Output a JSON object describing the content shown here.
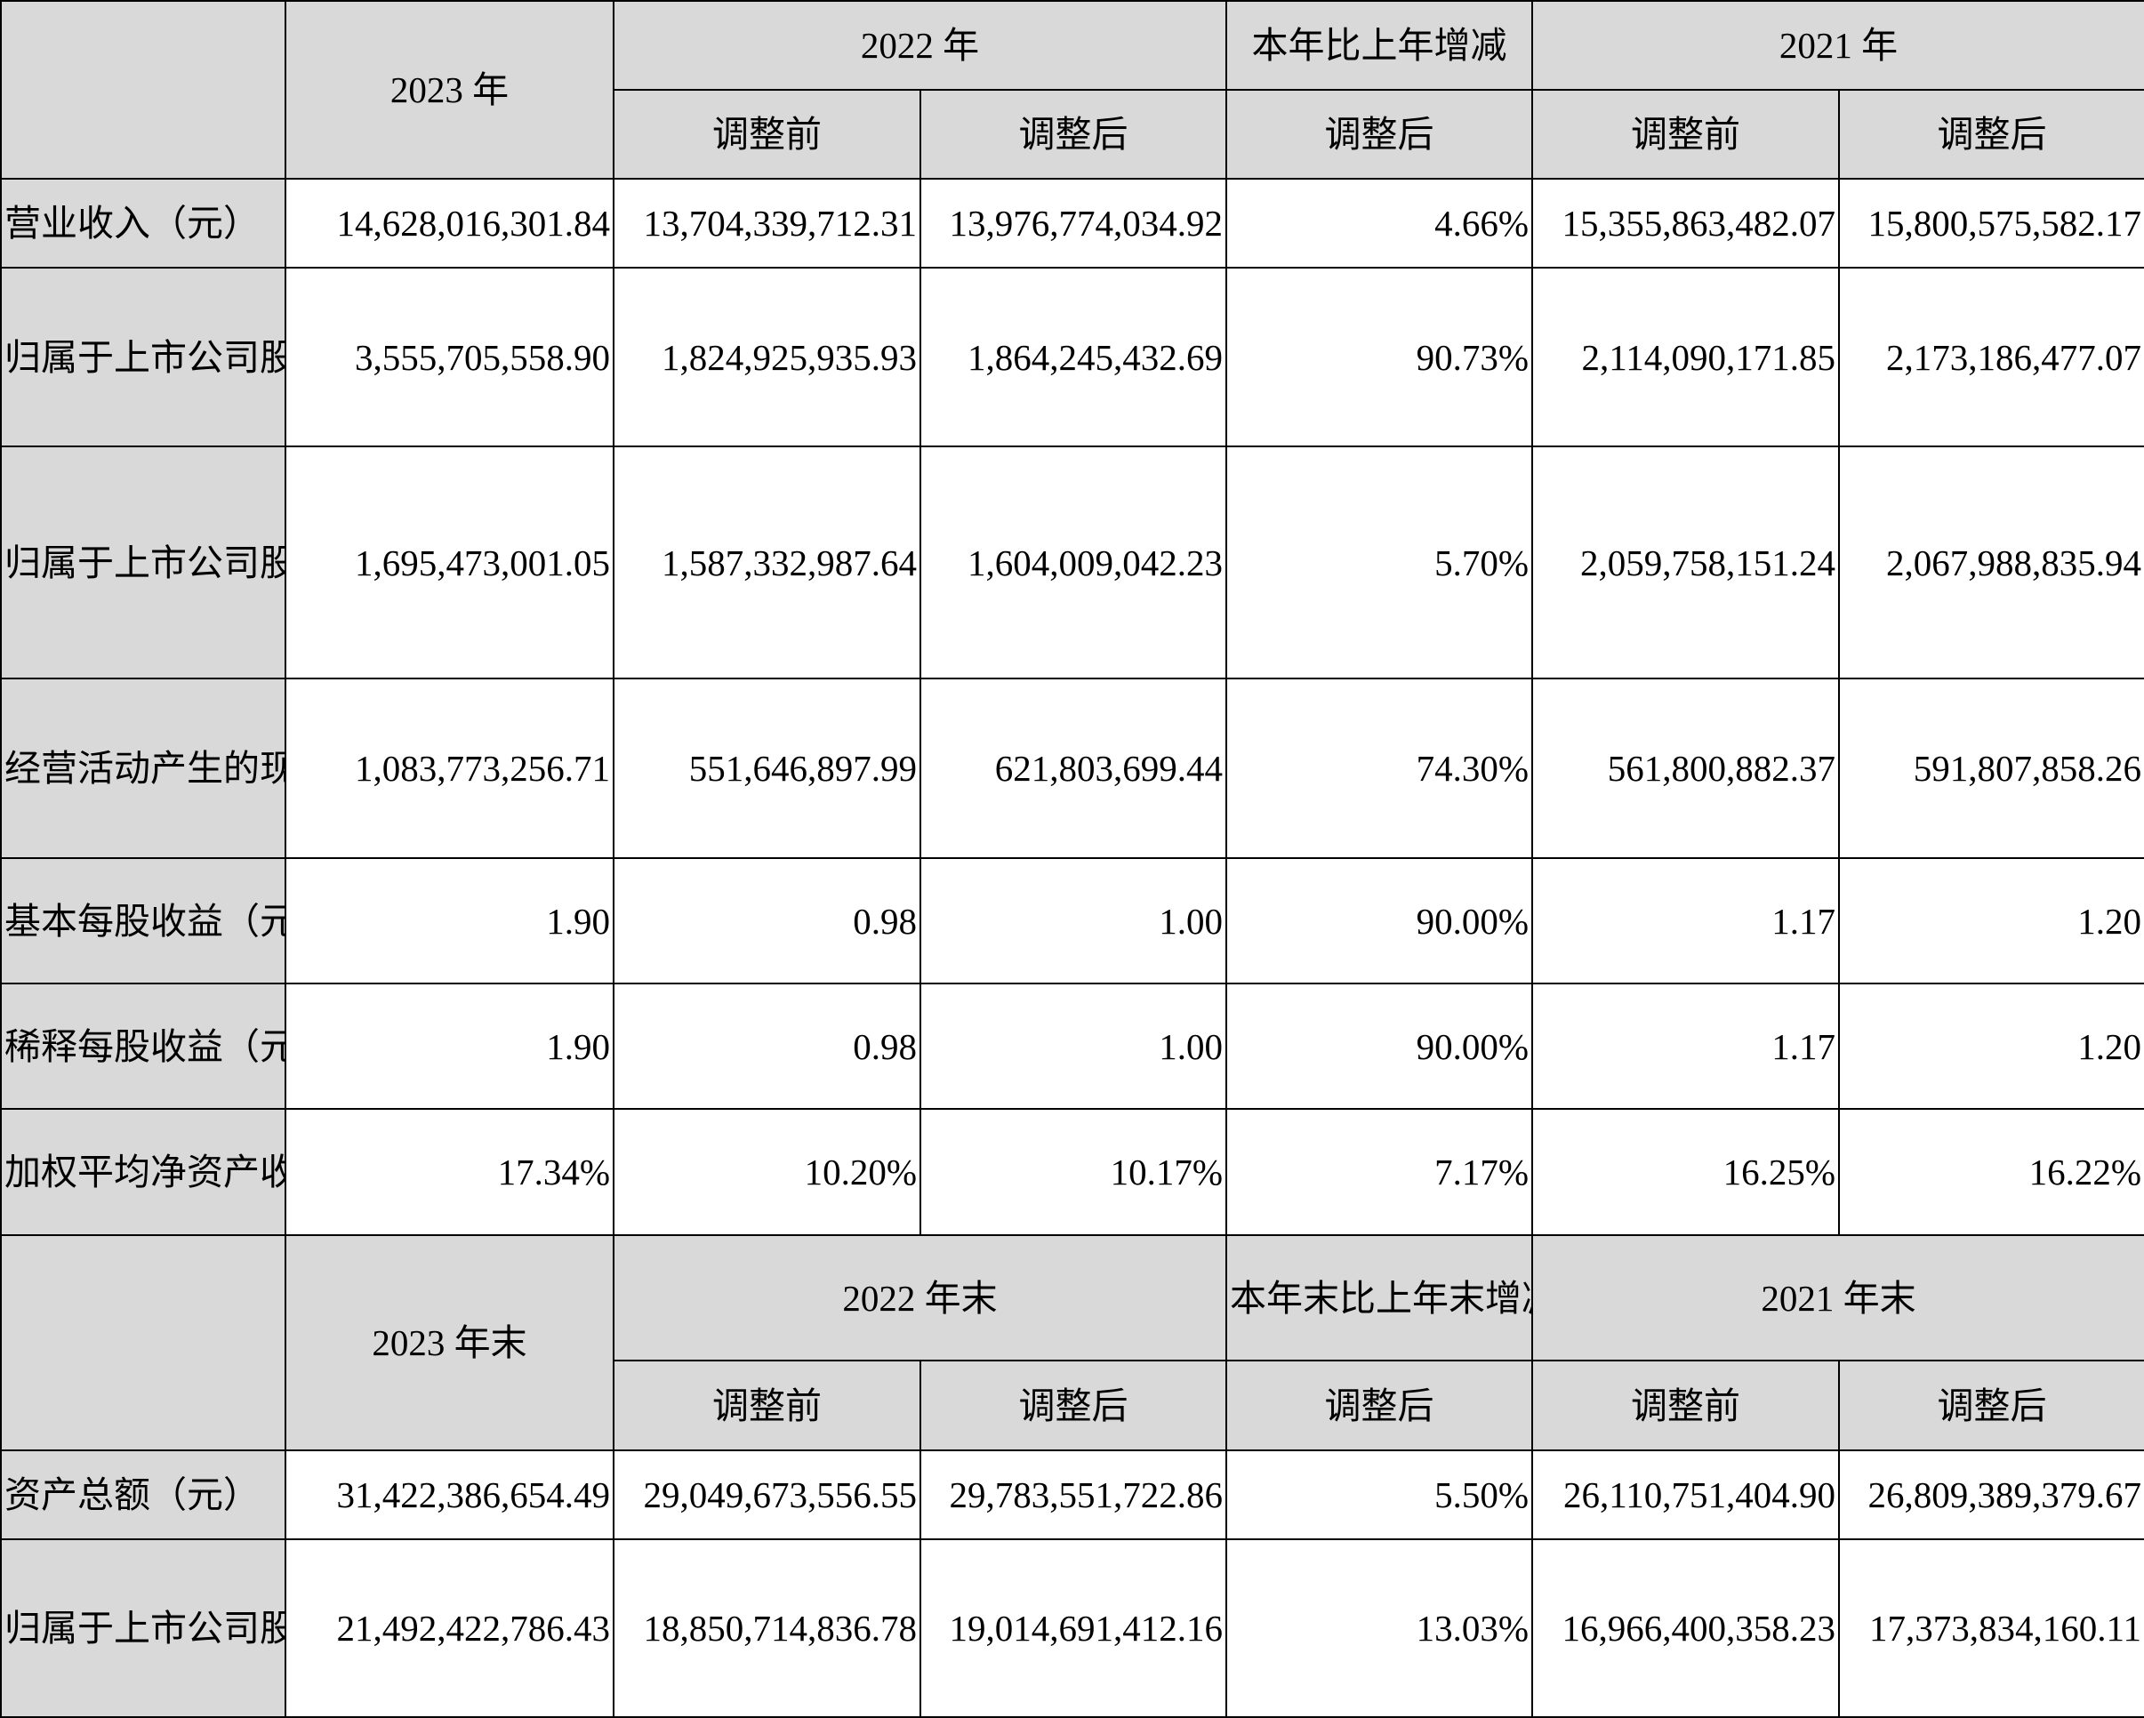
{
  "section1": {
    "header": {
      "year_2023": "2023 年",
      "year_2022": "2022 年",
      "yoy": "本年比上年增减",
      "year_2021": "2021 年",
      "before_adj": "调整前",
      "after_adj": "调整后"
    },
    "rows": [
      {
        "label": "营业收入（元）",
        "v2023": "14,628,016,301.84",
        "v2022_before": "13,704,339,712.31",
        "v2022_after": "13,976,774,034.92",
        "yoy": "4.66%",
        "v2021_before": "15,355,863,482.07",
        "v2021_after": "15,800,575,582.17"
      },
      {
        "label": "归属于上市公司股东的净利润（元）",
        "v2023": "3,555,705,558.90",
        "v2022_before": "1,824,925,935.93",
        "v2022_after": "1,864,245,432.69",
        "yoy": "90.73%",
        "v2021_before": "2,114,090,171.85",
        "v2021_after": "2,173,186,477.07"
      },
      {
        "label": "归属于上市公司股东的扣除非经常性损益的净利润（元）",
        "v2023": "1,695,473,001.05",
        "v2022_before": "1,587,332,987.64",
        "v2022_after": "1,604,009,042.23",
        "yoy": "5.70%",
        "v2021_before": "2,059,758,151.24",
        "v2021_after": "2,067,988,835.94"
      },
      {
        "label": "经营活动产生的现金流量净额（元）",
        "v2023": "1,083,773,256.71",
        "v2022_before": "551,646,897.99",
        "v2022_after": "621,803,699.44",
        "yoy": "74.30%",
        "v2021_before": "561,800,882.37",
        "v2021_after": "591,807,858.26"
      },
      {
        "label": "基本每股收益（元/股）",
        "v2023": "1.90",
        "v2022_before": "0.98",
        "v2022_after": "1.00",
        "yoy": "90.00%",
        "v2021_before": "1.17",
        "v2021_after": "1.20"
      },
      {
        "label": "稀释每股收益（元/股）",
        "v2023": "1.90",
        "v2022_before": "0.98",
        "v2022_after": "1.00",
        "yoy": "90.00%",
        "v2021_before": "1.17",
        "v2021_after": "1.20"
      },
      {
        "label": "加权平均净资产收益率",
        "v2023": "17.34%",
        "v2022_before": "10.20%",
        "v2022_after": "10.17%",
        "yoy": "7.17%",
        "v2021_before": "16.25%",
        "v2021_after": "16.22%"
      }
    ]
  },
  "section2": {
    "header": {
      "year_2023": "2023 年末",
      "year_2022": "2022 年末",
      "yoy": "本年末比上年末增减",
      "year_2021": "2021 年末",
      "before_adj": "调整前",
      "after_adj": "调整后"
    },
    "rows": [
      {
        "label": "资产总额（元）",
        "v2023": "31,422,386,654.49",
        "v2022_before": "29,049,673,556.55",
        "v2022_after": "29,783,551,722.86",
        "yoy": "5.50%",
        "v2021_before": "26,110,751,404.90",
        "v2021_after": "26,809,389,379.67"
      },
      {
        "label": "归属于上市公司股东的净资产（元）",
        "v2023": "21,492,422,786.43",
        "v2022_before": "18,850,714,836.78",
        "v2022_after": "19,014,691,412.16",
        "yoy": "13.03%",
        "v2021_before": "16,966,400,358.23",
        "v2021_after": "17,373,834,160.11"
      }
    ]
  }
}
